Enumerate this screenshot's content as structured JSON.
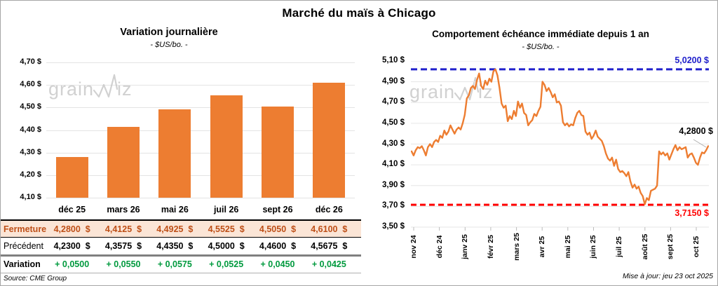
{
  "page_title": "Marché du maïs à Chicago",
  "left_chart": {
    "title": "Variation journalière",
    "subtitle": "- $US/bo. -"
  },
  "right_chart": {
    "title": "Comportement échéance immédiate depuis 1 an",
    "subtitle": "- $US/bo. -",
    "high_label": "5,0200 $",
    "low_label": "3,7150 $",
    "last_label": "4,2800 $",
    "updated": "Mise à jour: jeu 23 oct 2025"
  },
  "watermark": {
    "part1": "grain",
    "part2": "iz"
  },
  "table": {
    "columns": [
      "déc 25",
      "mars 26",
      "mai 26",
      "juil 26",
      "sept 26",
      "déc 26"
    ],
    "rows": [
      {
        "label": "Fermeture",
        "values": [
          "4,2800  $",
          "4,4125  $",
          "4,4925  $",
          "4,5525  $",
          "4,5050  $",
          "4,6100  $"
        ]
      },
      {
        "label": "Précédent",
        "values": [
          "4,2300  $",
          "4,3575  $",
          "4,4350  $",
          "4,5000  $",
          "4,4600  $",
          "4,5675  $"
        ]
      },
      {
        "label": "Variation",
        "values": [
          "+ 0,0500",
          "+ 0,0550",
          "+ 0,0575",
          "+ 0,0525",
          "+ 0,0450",
          "+ 0,0425"
        ]
      }
    ],
    "source": "Source: CME Group"
  },
  "colors": {
    "bar_orange": "#ED7D31",
    "line_orange": "#ED7D31",
    "high_blue": "#2222CC",
    "low_red": "#FF0000",
    "fermeture_text": "#BE4F17",
    "fermeture_bg": "#FBE5D6",
    "variation_green": "#009A3E",
    "gridline": "#e3e3e3"
  },
  "chart_data": [
    {
      "type": "bar",
      "title": "Variation journalière",
      "subtitle": "- $US/bo. -",
      "ylabel": "$US/bo.",
      "categories": [
        "déc 25",
        "mars 26",
        "mai 26",
        "juil 26",
        "sept 26",
        "déc 26"
      ],
      "values": [
        4.28,
        4.4125,
        4.4925,
        4.5525,
        4.505,
        4.61
      ],
      "ylim": [
        4.1,
        4.7
      ],
      "y_tick_step": 0.1,
      "y_tick_labels": [
        "4,10 $",
        "4,20 $",
        "4,30 $",
        "4,40 $",
        "4,50 $",
        "4,60 $",
        "4,70 $"
      ],
      "grid": true,
      "bar_color": "#ED7D31"
    },
    {
      "type": "line",
      "title": "Comportement échéance immédiate depuis 1 an",
      "subtitle": "- $US/bo. -",
      "ylabel": "$US/bo.",
      "ylim": [
        3.5,
        5.1
      ],
      "y_tick_step": 0.2,
      "y_tick_labels": [
        "3,50 $",
        "3,70 $",
        "3,90 $",
        "4,10 $",
        "4,30 $",
        "4,50 $",
        "4,70 $",
        "4,90 $",
        "5,10 $"
      ],
      "x_tick_labels": [
        "nov 24",
        "déc 24",
        "janv 25",
        "févr 25",
        "mars 25",
        "avr 25",
        "mai 25",
        "juin 25",
        "juil 25",
        "août 25",
        "sept 25",
        "oct 25"
      ],
      "grid": true,
      "line_color": "#ED7D31",
      "high_line": {
        "value": 5.02,
        "label": "5,0200 $",
        "color": "#2222CC",
        "style": "dashed"
      },
      "low_line": {
        "value": 3.715,
        "label": "3,7150 $",
        "color": "#FF0000",
        "style": "dashed"
      },
      "last_point": {
        "value": 4.28,
        "label": "4,2800 $"
      },
      "series": [
        {
          "name": "échéance immédiate",
          "values": [
            4.23,
            4.19,
            4.24,
            4.27,
            4.26,
            4.28,
            4.24,
            4.19,
            4.27,
            4.3,
            4.27,
            4.32,
            4.34,
            4.32,
            4.38,
            4.36,
            4.43,
            4.39,
            4.42,
            4.48,
            4.44,
            4.4,
            4.44,
            4.46,
            4.44,
            4.5,
            4.58,
            4.74,
            4.77,
            4.84,
            4.86,
            4.83,
            4.92,
            4.98,
            4.86,
            4.83,
            4.91,
            4.87,
            4.93,
            4.9,
            5.0,
            5.02,
            4.96,
            4.84,
            4.69,
            4.65,
            4.67,
            4.52,
            4.57,
            4.54,
            4.62,
            4.57,
            4.71,
            4.65,
            4.69,
            4.6,
            4.58,
            4.48,
            4.51,
            4.53,
            4.59,
            4.57,
            4.62,
            4.66,
            4.9,
            4.87,
            4.81,
            4.84,
            4.8,
            4.75,
            4.78,
            4.7,
            4.71,
            4.67,
            4.51,
            4.48,
            4.5,
            4.47,
            4.49,
            4.48,
            4.55,
            4.6,
            4.62,
            4.58,
            4.57,
            4.42,
            4.39,
            4.41,
            4.35,
            4.38,
            4.43,
            4.37,
            4.35,
            4.33,
            4.28,
            4.21,
            4.16,
            4.14,
            4.17,
            4.09,
            4.15,
            4.06,
            4.03,
            4.04,
            4.02,
            3.99,
            4.03,
            3.94,
            3.88,
            3.91,
            3.87,
            3.89,
            3.83,
            3.8,
            3.72,
            3.78,
            3.76,
            3.85,
            3.86,
            3.87,
            3.9,
            4.23,
            4.2,
            4.22,
            4.19,
            4.21,
            4.15,
            4.2,
            4.25,
            4.29,
            4.24,
            4.27,
            4.25,
            4.26,
            4.27,
            4.17,
            4.2,
            4.21,
            4.17,
            4.12,
            4.1,
            4.17,
            4.22,
            4.21,
            4.24,
            4.28
          ]
        }
      ]
    }
  ]
}
